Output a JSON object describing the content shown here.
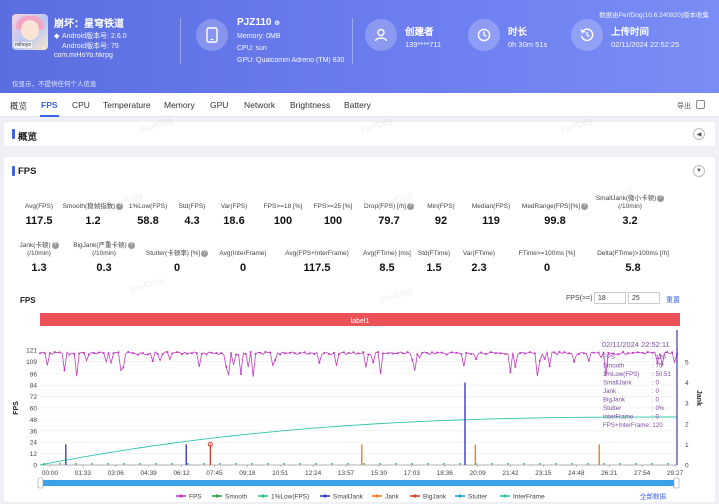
{
  "header": {
    "game_title": "崩坏：星穹铁道",
    "android_version": "Android版本号: 2.6.0",
    "android_api": "Android版本号: 75",
    "package": "com.miHoYo.hkrpg",
    "avatar_tag": "mihoyo",
    "device": {
      "name": "PJZ110",
      "memory": "Memory: 0MB",
      "cpu": "CPU: sun",
      "gpu": "GPU: Qualcomm Adreno (TM) 830"
    },
    "creator": {
      "label": "创建者",
      "value": "139****711"
    },
    "duration": {
      "label": "时长",
      "value": "0h 30m 51s"
    },
    "upload": {
      "label": "上传时间",
      "value": "02/11/2024 22:52:25"
    },
    "version_note": "数据由PerfDog(10.6.240920)版本收集",
    "privacy_note": "仅显示，不提供任何个人信息"
  },
  "tabs": [
    "概览",
    "FPS",
    "CPU",
    "Temperature",
    "Memory",
    "GPU",
    "Network",
    "Brightness",
    "Battery"
  ],
  "active_tab": "FPS",
  "export_label": "导出",
  "overview": {
    "title": "概览"
  },
  "fps_section": {
    "title": "FPS",
    "row1": [
      {
        "label": "Avg(FPS)",
        "value": "117.5"
      },
      {
        "label": "Smooth(稳帧指数)",
        "value": "1.2",
        "help": true
      },
      {
        "label": "1%Low(FPS)",
        "value": "58.8"
      },
      {
        "label": "Std(FPS)",
        "value": "4.3"
      },
      {
        "label": "Var(FPS)",
        "value": "18.6"
      },
      {
        "label": "FPS>=18 [%]",
        "value": "100"
      },
      {
        "label": "FPS>=25 [%]",
        "value": "100"
      },
      {
        "label": "Drop(FPS) [/h]",
        "value": "79.7",
        "help": true
      },
      {
        "label": "Min(FPS)",
        "value": "92"
      },
      {
        "label": "Median(FPS)",
        "value": "119"
      },
      {
        "label": "MedRange(FPS)[%]",
        "value": "99.8",
        "help": true
      },
      {
        "label": "SmallJank(微小卡顿)\n(/10min)",
        "value": "3.2",
        "help": true
      }
    ],
    "row2": [
      {
        "label": "Jank(卡顿)\n(/10min)",
        "value": "1.3",
        "help": true
      },
      {
        "label": "BigJank(严重卡顿)\n(/10min)",
        "value": "0.3",
        "help": true
      },
      {
        "label": "Stutter(卡顿率) [%]",
        "value": "0",
        "help": true
      },
      {
        "label": "Avg(InterFrame)",
        "value": "0"
      },
      {
        "label": "Avg(FPS+InterFrame)",
        "value": "117.5"
      },
      {
        "label": "Avg(FTime) [ms]",
        "value": "8.5"
      },
      {
        "label": "Std(FTime)",
        "value": "1.5"
      },
      {
        "label": "Var(FTime)",
        "value": "2.3"
      },
      {
        "label": "FTime>=100ms [%]",
        "value": "0"
      },
      {
        "label": "Delta(FTime)>100ms [/h]",
        "value": "5.8"
      }
    ],
    "chart_heading": "FPS",
    "fps_eq_label": "FPS(>=)",
    "fps_threshold_1": "18",
    "fps_threshold_2": "25",
    "reset_label": "重置",
    "all_data_label": "全部数据",
    "watermark": "PerfDog"
  },
  "colors": {
    "header": "#5b6ee0",
    "accent": "#3e63e3",
    "fps": "#c03cc0",
    "smooth": "#2e9d4a",
    "low": "#2fc47c",
    "smalljank": "#3b3bbd",
    "jank": "#f07e20",
    "bigjank": "#d6402f",
    "stutter": "#2aa3d4",
    "interframe": "#31c4a9",
    "label_bar": "#ec5158"
  },
  "chart_data": {
    "type": "line",
    "label_bar": "label1",
    "ylabel": "FPS",
    "y2label": "Jank",
    "ylim": [
      0,
      121
    ],
    "y_ticks": [
      0,
      12,
      24,
      36,
      48,
      60,
      72,
      84,
      96,
      109,
      121
    ],
    "y2_ticks": [
      0,
      1,
      2,
      3,
      4,
      5
    ],
    "x_ticks": [
      "00:00",
      "01:33",
      "03:06",
      "04:39",
      "06:12",
      "07:45",
      "09:18",
      "10:51",
      "12:24",
      "13:57",
      "15:30",
      "17:03",
      "18:36",
      "20:09",
      "21:42",
      "23:15",
      "24:48",
      "26:21",
      "27:54",
      "29:27"
    ],
    "legend": [
      "FPS",
      "Smooth",
      "1%Low(FPS)",
      "SmallJank",
      "Jank",
      "BigJank",
      "Stutter",
      "InterFrame"
    ],
    "series": [
      {
        "name": "FPS",
        "baseline": 119,
        "dip_min": 92
      },
      {
        "name": "Smooth",
        "values_start": 0,
        "values_end": 0
      },
      {
        "name": "1%Low(FPS)",
        "start": 0,
        "end": 50.5
      },
      {
        "name": "SmallJank",
        "events": [
          {
            "t": "01:15",
            "v": 1
          },
          {
            "t": "07:05",
            "v": 1
          },
          {
            "t": "20:35",
            "v": 4
          }
        ]
      },
      {
        "name": "Jank",
        "events": [
          {
            "t": "15:35",
            "v": 1
          },
          {
            "t": "21:05",
            "v": 1
          },
          {
            "t": "27:05",
            "v": 1
          }
        ]
      },
      {
        "name": "BigJank",
        "events": [
          {
            "t": "08:15",
            "v": 1
          }
        ]
      }
    ],
    "tooltip": {
      "time": "02/11/2024 22:52:11",
      "rows": [
        {
          "k": "FPS",
          "v": "120"
        },
        {
          "k": "Smooth",
          "v": "75"
        },
        {
          "k": "1%Low(FPS)",
          "v": "50.51"
        },
        {
          "k": "SmallJank",
          "v": "0"
        },
        {
          "k": "Jank",
          "v": "0"
        },
        {
          "k": "BigJank",
          "v": "0"
        },
        {
          "k": "Stutter",
          "v": "0%"
        },
        {
          "k": "InterFrame",
          "v": "0"
        },
        {
          "k": "FPS+InterFrame",
          "v": "120"
        }
      ]
    }
  }
}
